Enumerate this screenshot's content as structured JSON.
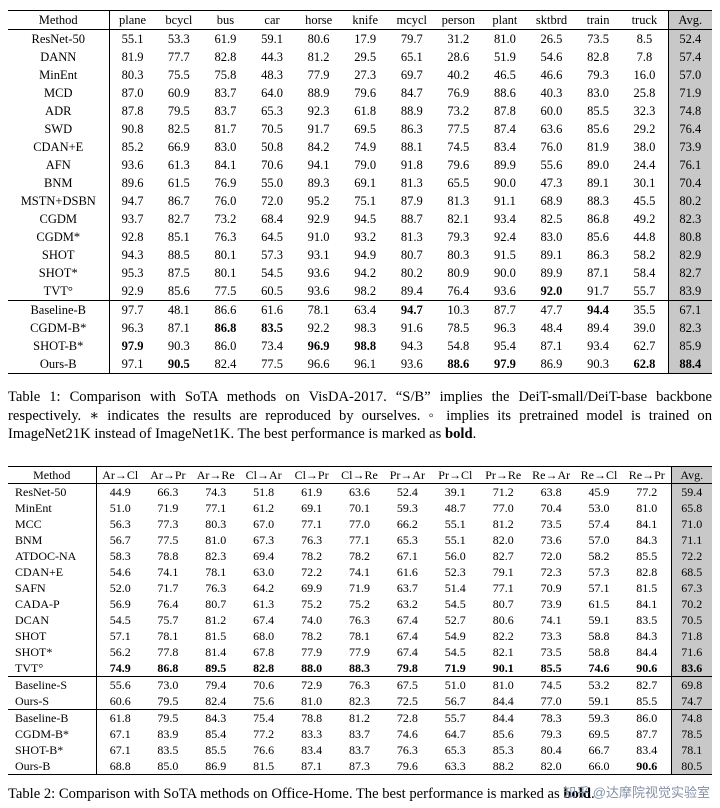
{
  "watermark": {
    "text": "知乎 @达摩院视觉实验室",
    "color": "#8590a6"
  },
  "avg_column_bg": "#c8c8c8",
  "table1": {
    "columns": [
      "Method",
      "plane",
      "bcycl",
      "bus",
      "car",
      "horse",
      "knife",
      "mcycl",
      "person",
      "plant",
      "sktbrd",
      "train",
      "truck",
      "Avg."
    ],
    "separator_before": [
      15
    ],
    "rows": [
      {
        "method": "ResNet-50",
        "values": [
          "55.1",
          "53.3",
          "61.9",
          "59.1",
          "80.6",
          "17.9",
          "79.7",
          "31.2",
          "81.0",
          "26.5",
          "73.5",
          "8.5",
          "52.4"
        ],
        "bold": []
      },
      {
        "method": "DANN",
        "values": [
          "81.9",
          "77.7",
          "82.8",
          "44.3",
          "81.2",
          "29.5",
          "65.1",
          "28.6",
          "51.9",
          "54.6",
          "82.8",
          "7.8",
          "57.4"
        ],
        "bold": []
      },
      {
        "method": "MinEnt",
        "values": [
          "80.3",
          "75.5",
          "75.8",
          "48.3",
          "77.9",
          "27.3",
          "69.7",
          "40.2",
          "46.5",
          "46.6",
          "79.3",
          "16.0",
          "57.0"
        ],
        "bold": []
      },
      {
        "method": "MCD",
        "values": [
          "87.0",
          "60.9",
          "83.7",
          "64.0",
          "88.9",
          "79.6",
          "84.7",
          "76.9",
          "88.6",
          "40.3",
          "83.0",
          "25.8",
          "71.9"
        ],
        "bold": []
      },
      {
        "method": "ADR",
        "values": [
          "87.8",
          "79.5",
          "83.7",
          "65.3",
          "92.3",
          "61.8",
          "88.9",
          "73.2",
          "87.8",
          "60.0",
          "85.5",
          "32.3",
          "74.8"
        ],
        "bold": []
      },
      {
        "method": "SWD",
        "values": [
          "90.8",
          "82.5",
          "81.7",
          "70.5",
          "91.7",
          "69.5",
          "86.3",
          "77.5",
          "87.4",
          "63.6",
          "85.6",
          "29.2",
          "76.4"
        ],
        "bold": []
      },
      {
        "method": "CDAN+E",
        "values": [
          "85.2",
          "66.9",
          "83.0",
          "50.8",
          "84.2",
          "74.9",
          "88.1",
          "74.5",
          "83.4",
          "76.0",
          "81.9",
          "38.0",
          "73.9"
        ],
        "bold": []
      },
      {
        "method": "AFN",
        "values": [
          "93.6",
          "61.3",
          "84.1",
          "70.6",
          "94.1",
          "79.0",
          "91.8",
          "79.6",
          "89.9",
          "55.6",
          "89.0",
          "24.4",
          "76.1"
        ],
        "bold": []
      },
      {
        "method": "BNM",
        "values": [
          "89.6",
          "61.5",
          "76.9",
          "55.0",
          "89.3",
          "69.1",
          "81.3",
          "65.5",
          "90.0",
          "47.3",
          "89.1",
          "30.1",
          "70.4"
        ],
        "bold": []
      },
      {
        "method": "MSTN+DSBN",
        "values": [
          "94.7",
          "86.7",
          "76.0",
          "72.0",
          "95.2",
          "75.1",
          "87.9",
          "81.3",
          "91.1",
          "68.9",
          "88.3",
          "45.5",
          "80.2"
        ],
        "bold": []
      },
      {
        "method": "CGDM",
        "values": [
          "93.7",
          "82.7",
          "73.2",
          "68.4",
          "92.9",
          "94.5",
          "88.7",
          "82.1",
          "93.4",
          "82.5",
          "86.8",
          "49.2",
          "82.3"
        ],
        "bold": []
      },
      {
        "method": "CGDM*",
        "values": [
          "92.8",
          "85.1",
          "76.3",
          "64.5",
          "91.0",
          "93.2",
          "81.3",
          "79.3",
          "92.4",
          "83.0",
          "85.6",
          "44.8",
          "80.8"
        ],
        "bold": []
      },
      {
        "method": "SHOT",
        "values": [
          "94.3",
          "88.5",
          "80.1",
          "57.3",
          "93.1",
          "94.9",
          "80.7",
          "80.3",
          "91.5",
          "89.1",
          "86.3",
          "58.2",
          "82.9"
        ],
        "bold": []
      },
      {
        "method": "SHOT*",
        "values": [
          "95.3",
          "87.5",
          "80.1",
          "54.5",
          "93.6",
          "94.2",
          "80.2",
          "80.9",
          "90.0",
          "89.9",
          "87.1",
          "58.4",
          "82.7"
        ],
        "bold": []
      },
      {
        "method": "TVT°",
        "values": [
          "92.9",
          "85.6",
          "77.5",
          "60.5",
          "93.6",
          "98.2",
          "89.4",
          "76.4",
          "93.6",
          "92.0",
          "91.7",
          "55.7",
          "83.9"
        ],
        "bold": [
          9
        ]
      },
      {
        "method": "Baseline-B",
        "values": [
          "97.7",
          "48.1",
          "86.6",
          "61.6",
          "78.1",
          "63.4",
          "94.7",
          "10.3",
          "87.7",
          "47.7",
          "94.4",
          "35.5",
          "67.1"
        ],
        "bold": [
          6,
          10
        ]
      },
      {
        "method": "CGDM-B*",
        "values": [
          "96.3",
          "87.1",
          "86.8",
          "83.5",
          "92.2",
          "98.3",
          "91.6",
          "78.5",
          "96.3",
          "48.4",
          "89.4",
          "39.0",
          "82.3"
        ],
        "bold": [
          2,
          3
        ]
      },
      {
        "method": "SHOT-B*",
        "values": [
          "97.9",
          "90.3",
          "86.0",
          "73.4",
          "96.9",
          "98.8",
          "94.3",
          "54.8",
          "95.4",
          "87.1",
          "93.4",
          "62.7",
          "85.9"
        ],
        "bold": [
          0,
          4,
          5
        ]
      },
      {
        "method": "Ours-B",
        "values": [
          "97.1",
          "90.5",
          "82.4",
          "77.5",
          "96.6",
          "96.1",
          "93.6",
          "88.6",
          "97.9",
          "86.9",
          "90.3",
          "62.8",
          "88.4"
        ],
        "bold": [
          1,
          7,
          8,
          11,
          12
        ]
      }
    ],
    "caption": [
      {
        "text": "Table 1: Comparison with SoTA methods on VisDA-2017. “S/B” implies the DeiT-small/DeiT-base backbone respectively. ∗ indicates the results are reproduced by ourselves. ◦ implies its pretrained model is trained on ImageNet21K instead of ImageNet1K. The best performance is marked as ",
        "bold": false
      },
      {
        "text": "bold",
        "bold": true
      },
      {
        "text": ".",
        "bold": false
      }
    ]
  },
  "table2": {
    "columns": [
      "Method",
      "Ar→Cl",
      "Ar→Pr",
      "Ar→Re",
      "Cl→Ar",
      "Cl→Pr",
      "Cl→Re",
      "Pr→Ar",
      "Pr→Cl",
      "Pr→Re",
      "Re→Ar",
      "Re→Cl",
      "Re→Pr",
      "Avg."
    ],
    "separator_before": [
      12,
      14
    ],
    "rows": [
      {
        "method": "ResNet-50",
        "values": [
          "44.9",
          "66.3",
          "74.3",
          "51.8",
          "61.9",
          "63.6",
          "52.4",
          "39.1",
          "71.2",
          "63.8",
          "45.9",
          "77.2",
          "59.4"
        ],
        "bold": []
      },
      {
        "method": "MinEnt",
        "values": [
          "51.0",
          "71.9",
          "77.1",
          "61.2",
          "69.1",
          "70.1",
          "59.3",
          "48.7",
          "77.0",
          "70.4",
          "53.0",
          "81.0",
          "65.8"
        ],
        "bold": []
      },
      {
        "method": "MCC",
        "values": [
          "56.3",
          "77.3",
          "80.3",
          "67.0",
          "77.1",
          "77.0",
          "66.2",
          "55.1",
          "81.2",
          "73.5",
          "57.4",
          "84.1",
          "71.0"
        ],
        "bold": []
      },
      {
        "method": "BNM",
        "values": [
          "56.7",
          "77.5",
          "81.0",
          "67.3",
          "76.3",
          "77.1",
          "65.3",
          "55.1",
          "82.0",
          "73.6",
          "57.0",
          "84.3",
          "71.1"
        ],
        "bold": []
      },
      {
        "method": "ATDOC-NA",
        "values": [
          "58.3",
          "78.8",
          "82.3",
          "69.4",
          "78.2",
          "78.2",
          "67.1",
          "56.0",
          "82.7",
          "72.0",
          "58.2",
          "85.5",
          "72.2"
        ],
        "bold": []
      },
      {
        "method": "CDAN+E",
        "values": [
          "54.6",
          "74.1",
          "78.1",
          "63.0",
          "72.2",
          "74.1",
          "61.6",
          "52.3",
          "79.1",
          "72.3",
          "57.3",
          "82.8",
          "68.5"
        ],
        "bold": []
      },
      {
        "method": "SAFN",
        "values": [
          "52.0",
          "71.7",
          "76.3",
          "64.2",
          "69.9",
          "71.9",
          "63.7",
          "51.4",
          "77.1",
          "70.9",
          "57.1",
          "81.5",
          "67.3"
        ],
        "bold": []
      },
      {
        "method": "CADA-P",
        "values": [
          "56.9",
          "76.4",
          "80.7",
          "61.3",
          "75.2",
          "75.2",
          "63.2",
          "54.5",
          "80.7",
          "73.9",
          "61.5",
          "84.1",
          "70.2"
        ],
        "bold": []
      },
      {
        "method": "DCAN",
        "values": [
          "54.5",
          "75.7",
          "81.2",
          "67.4",
          "74.0",
          "76.3",
          "67.4",
          "52.7",
          "80.6",
          "74.1",
          "59.1",
          "83.5",
          "70.5"
        ],
        "bold": []
      },
      {
        "method": "SHOT",
        "values": [
          "57.1",
          "78.1",
          "81.5",
          "68.0",
          "78.2",
          "78.1",
          "67.4",
          "54.9",
          "82.2",
          "73.3",
          "58.8",
          "84.3",
          "71.8"
        ],
        "bold": []
      },
      {
        "method": "SHOT*",
        "values": [
          "56.2",
          "77.8",
          "81.4",
          "67.8",
          "77.9",
          "77.9",
          "67.4",
          "54.5",
          "82.1",
          "73.5",
          "58.8",
          "84.4",
          "71.6"
        ],
        "bold": []
      },
      {
        "method": "TVT°",
        "values": [
          "74.9",
          "86.8",
          "89.5",
          "82.8",
          "88.0",
          "88.3",
          "79.8",
          "71.9",
          "90.1",
          "85.5",
          "74.6",
          "90.6",
          "83.6"
        ],
        "bold": [
          0,
          1,
          2,
          3,
          4,
          5,
          6,
          7,
          8,
          9,
          10,
          11,
          12
        ]
      },
      {
        "method": "Baseline-S",
        "values": [
          "55.6",
          "73.0",
          "79.4",
          "70.6",
          "72.9",
          "76.3",
          "67.5",
          "51.0",
          "81.0",
          "74.5",
          "53.2",
          "82.7",
          "69.8"
        ],
        "bold": []
      },
      {
        "method": "Ours-S",
        "values": [
          "60.6",
          "79.5",
          "82.4",
          "75.6",
          "81.0",
          "82.3",
          "72.5",
          "56.7",
          "84.4",
          "77.0",
          "59.1",
          "85.5",
          "74.7"
        ],
        "bold": []
      },
      {
        "method": "Baseline-B",
        "values": [
          "61.8",
          "79.5",
          "84.3",
          "75.4",
          "78.8",
          "81.2",
          "72.8",
          "55.7",
          "84.4",
          "78.3",
          "59.3",
          "86.0",
          "74.8"
        ],
        "bold": []
      },
      {
        "method": "CGDM-B*",
        "values": [
          "67.1",
          "83.9",
          "85.4",
          "77.2",
          "83.3",
          "83.7",
          "74.6",
          "64.7",
          "85.6",
          "79.3",
          "69.5",
          "87.7",
          "78.5"
        ],
        "bold": []
      },
      {
        "method": "SHOT-B*",
        "values": [
          "67.1",
          "83.5",
          "85.5",
          "76.6",
          "83.4",
          "83.7",
          "76.3",
          "65.3",
          "85.3",
          "80.4",
          "66.7",
          "83.4",
          "78.1"
        ],
        "bold": []
      },
      {
        "method": "Ours-B",
        "values": [
          "68.8",
          "85.0",
          "86.9",
          "81.5",
          "87.1",
          "87.3",
          "79.6",
          "63.3",
          "88.2",
          "82.0",
          "66.0",
          "90.6",
          "80.5"
        ],
        "bold": [
          11
        ]
      }
    ],
    "caption": [
      {
        "text": "Table 2: Comparison with SoTA methods on Office-Home. The best performance is marked as ",
        "bold": false
      },
      {
        "text": "bold",
        "bold": true
      },
      {
        "text": ".",
        "bold": false
      }
    ]
  }
}
